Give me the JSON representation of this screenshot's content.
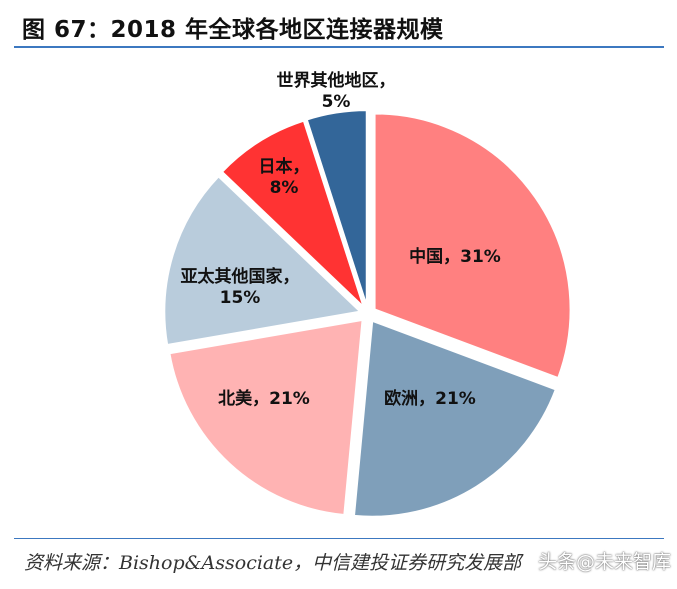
{
  "title": "图 67：2018 年全球各地区连接器规模",
  "source": "资料来源：Bishop&Associate，中信建投证券研究发展部",
  "watermark": "头条@未来智库",
  "chart_data": {
    "type": "pie",
    "title": "图 67：2018 年全球各地区连接器规模",
    "slices": [
      {
        "label": "中国",
        "value": 31,
        "value_label": "31%",
        "color": "#ff8080"
      },
      {
        "label": "欧洲",
        "value": 21,
        "value_label": "21%",
        "color": "#7f9fba"
      },
      {
        "label": "北美",
        "value": 21,
        "value_label": "21%",
        "color": "#ffb3b3"
      },
      {
        "label": "亚太其他国家",
        "value": 15,
        "value_label": "15%",
        "color": "#b9ccdc"
      },
      {
        "label": "日本",
        "value": 8,
        "value_label": "8%",
        "color": "#ff3333"
      },
      {
        "label": "世界其他地区",
        "value": 5,
        "value_label": "5%",
        "color": "#336699"
      }
    ]
  }
}
